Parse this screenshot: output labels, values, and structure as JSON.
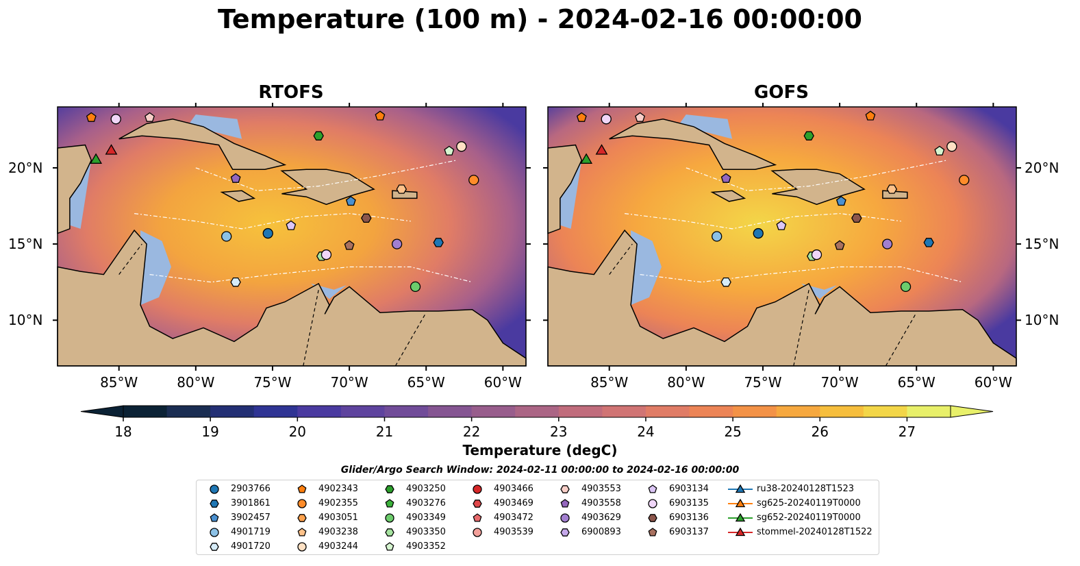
{
  "title": "Temperature (100 m) - 2024-02-16 00:00:00",
  "panels": [
    {
      "title": "RTOFS"
    },
    {
      "title": "GOFS"
    }
  ],
  "map": {
    "lon_range": [
      -89,
      -58.5
    ],
    "lat_range": [
      7,
      24
    ],
    "lat_ticks": [
      {
        "value": 20,
        "label": "20°N"
      },
      {
        "value": 15,
        "label": "15°N"
      },
      {
        "value": 10,
        "label": "10°N"
      }
    ],
    "lon_ticks": [
      {
        "value": -85,
        "label": "85°W"
      },
      {
        "value": -80,
        "label": "80°W"
      },
      {
        "value": -75,
        "label": "75°W"
      },
      {
        "value": -70,
        "label": "70°W"
      },
      {
        "value": -65,
        "label": "65°W"
      },
      {
        "value": -60,
        "label": "60°W"
      }
    ],
    "colors": {
      "land": "#d2b48c",
      "shelf": "#9ab8e0",
      "deep": "#0b2235"
    }
  },
  "colorbar": {
    "label": "Temperature (degC)",
    "min": 18,
    "max": 27,
    "step": 0.5,
    "ticks": [
      "18",
      "19",
      "20",
      "21",
      "22",
      "23",
      "24",
      "25",
      "26",
      "27"
    ],
    "colors": [
      "#0b2235",
      "#1a2d52",
      "#232f74",
      "#2f3494",
      "#4a3aa0",
      "#5e439e",
      "#714c99",
      "#855592",
      "#985d8c",
      "#ab6585",
      "#c06c7c",
      "#d07474",
      "#e07c66",
      "#ec8456",
      "#f39247",
      "#f6a83f",
      "#f6be3d",
      "#f3d648",
      "#e8f06a"
    ]
  },
  "legend": {
    "title": "Glider/Argo Search Window: 2024-02-11 00:00:00 to 2024-02-16 00:00:00",
    "columns": [
      [
        {
          "label": "2903766",
          "marker": "circle",
          "color": "#1f77b4"
        },
        {
          "label": "3901861",
          "marker": "hexagon",
          "color": "#1f77b4"
        },
        {
          "label": "3902457",
          "marker": "pentagon",
          "color": "#4a90d0"
        },
        {
          "label": "4901719",
          "marker": "circle",
          "color": "#8cc1e6"
        },
        {
          "label": "4901720",
          "marker": "hexagon",
          "color": "#d6ecf8"
        }
      ],
      [
        {
          "label": "4902343",
          "marker": "pentagon",
          "color": "#ff7f0e"
        },
        {
          "label": "4902355",
          "marker": "circle",
          "color": "#ff8c2a"
        },
        {
          "label": "4903051",
          "marker": "hexagon",
          "color": "#ffa24d"
        },
        {
          "label": "4903238",
          "marker": "pentagon",
          "color": "#ffc28a"
        },
        {
          "label": "4903244",
          "marker": "circle",
          "color": "#ffe1c4"
        }
      ],
      [
        {
          "label": "4903250",
          "marker": "hexagon",
          "color": "#2ca02c"
        },
        {
          "label": "4903276",
          "marker": "pentagon",
          "color": "#3cb23c"
        },
        {
          "label": "4903349",
          "marker": "circle",
          "color": "#6ccc6c"
        },
        {
          "label": "4903350",
          "marker": "hexagon",
          "color": "#a6e3a0"
        },
        {
          "label": "4903352",
          "marker": "pentagon",
          "color": "#d6f5d0"
        }
      ],
      [
        {
          "label": "4903466",
          "marker": "circle",
          "color": "#d62728"
        },
        {
          "label": "4903469",
          "marker": "hexagon",
          "color": "#e0474a"
        },
        {
          "label": "4903472",
          "marker": "pentagon",
          "color": "#e86a6c"
        },
        {
          "label": "4903539",
          "marker": "circle",
          "color": "#f3a09a"
        }
      ],
      [
        {
          "label": "4903553",
          "marker": "hexagon",
          "color": "#f8cfc8"
        },
        {
          "label": "4903558",
          "marker": "pentagon",
          "color": "#9467bd"
        },
        {
          "label": "4903629",
          "marker": "circle",
          "color": "#a27fd0"
        },
        {
          "label": "6900893",
          "marker": "hexagon",
          "color": "#c5a8ea"
        }
      ],
      [
        {
          "label": "6903134",
          "marker": "pentagon",
          "color": "#dcc6f5"
        },
        {
          "label": "6903135",
          "marker": "circle",
          "color": "#f0d6f8"
        },
        {
          "label": "6903136",
          "marker": "hexagon",
          "color": "#8c564b"
        },
        {
          "label": "6903137",
          "marker": "pentagon",
          "color": "#a8705f"
        }
      ],
      [
        {
          "label": "ru38-20240128T1523",
          "marker": "triangle-line",
          "color": "#1f77b4"
        },
        {
          "label": "sg625-20240119T0000",
          "marker": "triangle-line",
          "color": "#ff7f0e"
        },
        {
          "label": "sg652-20240119T0000",
          "marker": "triangle-line",
          "color": "#2ca02c"
        },
        {
          "label": "stommel-20240128T1522",
          "marker": "triangle-line",
          "color": "#d62728"
        }
      ]
    ]
  },
  "floats": [
    {
      "id": "4902343",
      "lon": -86.8,
      "lat": 23.3,
      "marker": "pentagon",
      "color": "#ff7f0e"
    },
    {
      "id": "4903135",
      "lon": -85.2,
      "lat": 23.2,
      "marker": "circle",
      "color": "#f0d6f8"
    },
    {
      "id": "4903244",
      "lon": -83.0,
      "lat": 23.3,
      "marker": "pentagon",
      "color": "#f8cfc8"
    },
    {
      "id": "4903250",
      "lon": -72.0,
      "lat": 22.1,
      "marker": "hexagon",
      "color": "#2ca02c"
    },
    {
      "id": "4902343b",
      "lon": -68.0,
      "lat": 23.4,
      "marker": "pentagon",
      "color": "#ff7f0e"
    },
    {
      "id": "4903352",
      "lon": -63.5,
      "lat": 21.1,
      "marker": "pentagon",
      "color": "#d6f5d0"
    },
    {
      "id": "4903244b",
      "lon": -62.7,
      "lat": 21.4,
      "marker": "circle",
      "color": "#ffe1c4"
    },
    {
      "id": "4902355",
      "lon": -61.9,
      "lat": 19.2,
      "marker": "circle",
      "color": "#ff8c2a"
    },
    {
      "id": "4903558",
      "lon": -77.4,
      "lat": 19.3,
      "marker": "pentagon",
      "color": "#9467bd"
    },
    {
      "id": "4903238",
      "lon": -66.6,
      "lat": 18.6,
      "marker": "hexagon",
      "color": "#ffc28a"
    },
    {
      "id": "3902457",
      "lon": -69.9,
      "lat": 17.8,
      "marker": "pentagon",
      "color": "#4a90d0"
    },
    {
      "id": "6903136",
      "lon": -68.9,
      "lat": 16.7,
      "marker": "hexagon",
      "color": "#8c564b"
    },
    {
      "id": "6903134",
      "lon": -73.8,
      "lat": 16.2,
      "marker": "pentagon",
      "color": "#dcc6f5"
    },
    {
      "id": "2903766",
      "lon": -75.3,
      "lat": 15.7,
      "marker": "circle",
      "color": "#1f77b4"
    },
    {
      "id": "4901719",
      "lon": -78.0,
      "lat": 15.5,
      "marker": "circle",
      "color": "#8cc1e6"
    },
    {
      "id": "6903137",
      "lon": -70.0,
      "lat": 14.9,
      "marker": "pentagon",
      "color": "#a8705f"
    },
    {
      "id": "4903629",
      "lon": -66.9,
      "lat": 15.0,
      "marker": "circle",
      "color": "#a27fd0"
    },
    {
      "id": "3901861",
      "lon": -64.2,
      "lat": 15.1,
      "marker": "hexagon",
      "color": "#1f77b4"
    },
    {
      "id": "4903350",
      "lon": -71.8,
      "lat": 14.2,
      "marker": "hexagon",
      "color": "#a6e3a0"
    },
    {
      "id": "6903135b",
      "lon": -71.5,
      "lat": 14.3,
      "marker": "circle",
      "color": "#f0d6f8"
    },
    {
      "id": "4901720",
      "lon": -77.4,
      "lat": 12.5,
      "marker": "hexagon",
      "color": "#d6ecf8"
    },
    {
      "id": "4903349",
      "lon": -65.7,
      "lat": 12.2,
      "marker": "circle",
      "color": "#6ccc6c"
    }
  ],
  "gliders": [
    {
      "id": "sg652-20240119T0000",
      "lon": -86.5,
      "lat": 20.5,
      "color": "#2ca02c"
    },
    {
      "id": "stommel-20240128T1522",
      "lon": -85.5,
      "lat": 21.1,
      "color": "#d62728"
    }
  ]
}
